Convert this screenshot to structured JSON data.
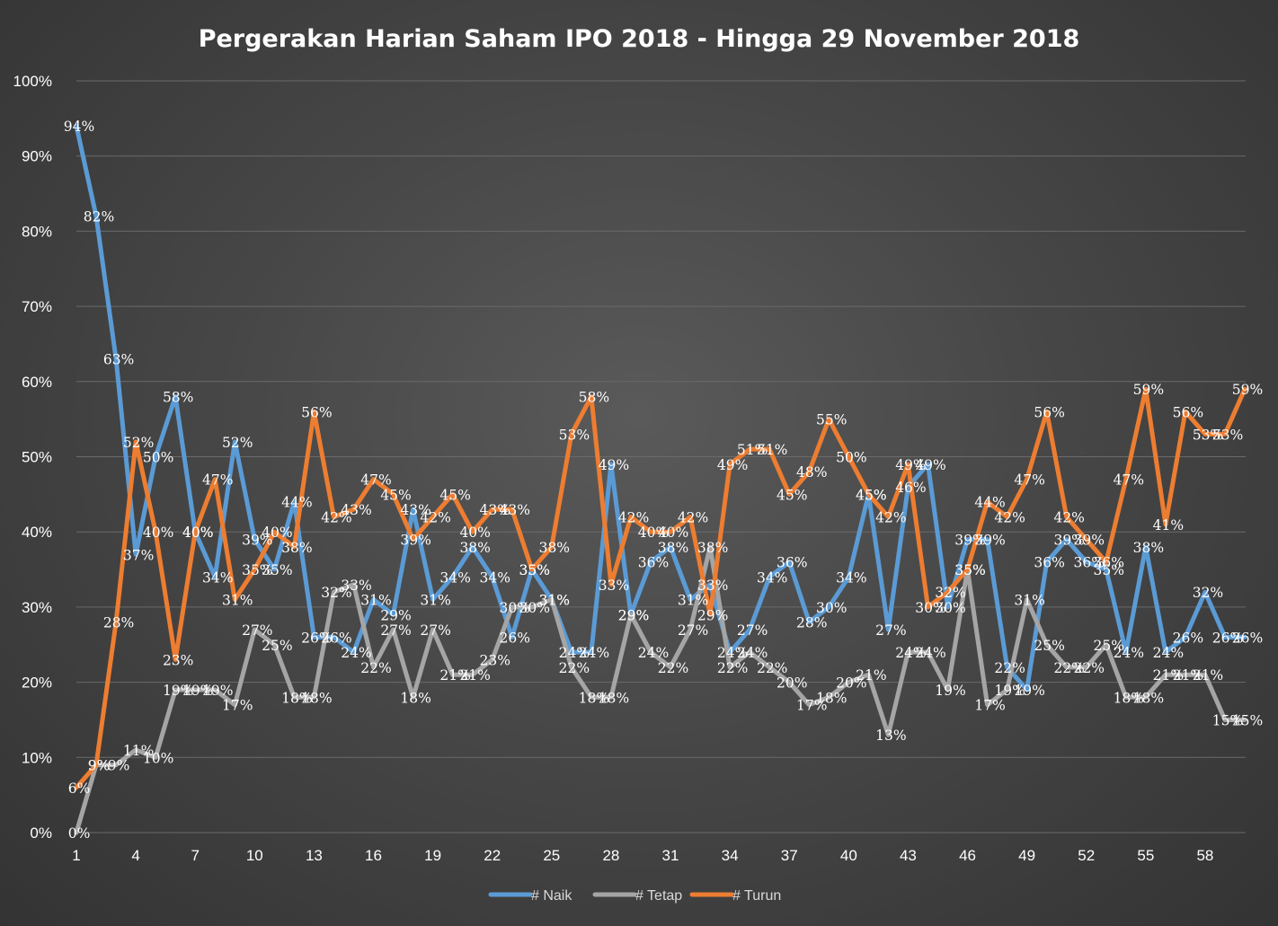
{
  "chart_data": {
    "type": "line",
    "title": "Pergerakan Harian Saham IPO 2018 - Hingga 29 November 2018",
    "xlabel": "",
    "ylabel": "",
    "ylim": [
      0,
      100
    ],
    "yticks": [
      "0%",
      "10%",
      "20%",
      "30%",
      "40%",
      "50%",
      "60%",
      "70%",
      "80%",
      "90%",
      "100%"
    ],
    "xticks": [
      "1",
      "4",
      "7",
      "10",
      "13",
      "16",
      "19",
      "22",
      "25",
      "28",
      "31",
      "34",
      "37",
      "40",
      "43",
      "46",
      "49",
      "52",
      "55",
      "58"
    ],
    "grid": true,
    "legend_position": "bottom",
    "x": [
      1,
      2,
      3,
      4,
      5,
      6,
      7,
      8,
      9,
      10,
      11,
      12,
      13,
      14,
      15,
      16,
      17,
      18,
      19,
      20,
      21,
      22,
      23,
      24,
      25,
      26,
      27,
      28,
      29,
      30,
      31,
      32,
      33,
      34,
      35,
      36,
      37,
      38,
      39,
      40,
      41,
      42,
      43,
      44,
      45,
      46,
      47,
      48,
      49,
      50,
      51,
      52,
      53,
      54,
      55,
      56,
      57,
      58,
      59,
      60
    ],
    "series": [
      {
        "name": "# Naik",
        "color": "#5b9bd5",
        "values": [
          94,
          82,
          63,
          37,
          50,
          58,
          40,
          34,
          52,
          39,
          35,
          44,
          26,
          26,
          24,
          31,
          29,
          43,
          31,
          34,
          38,
          34,
          26,
          35,
          31,
          24,
          24,
          49,
          29,
          36,
          38,
          31,
          33,
          24,
          27,
          34,
          36,
          28,
          30,
          34,
          45,
          27,
          46,
          49,
          30,
          39,
          39,
          22,
          19,
          36,
          39,
          36,
          35,
          24,
          38,
          24,
          26,
          32,
          26,
          26
        ]
      },
      {
        "name": "# Tetap",
        "color": "#a5a5a5",
        "values": [
          0,
          9,
          9,
          11,
          10,
          19,
          19,
          19,
          17,
          27,
          25,
          18,
          18,
          32,
          33,
          22,
          27,
          18,
          27,
          21,
          21,
          23,
          30,
          30,
          31,
          22,
          18,
          18,
          29,
          24,
          22,
          27,
          38,
          22,
          24,
          22,
          20,
          17,
          18,
          20,
          21,
          13,
          24,
          24,
          19,
          35,
          17,
          19,
          31,
          25,
          22,
          22,
          25,
          18,
          18,
          21,
          21,
          21,
          15,
          15
        ]
      },
      {
        "name": "# Turun",
        "color": "#ed7d31",
        "values": [
          6,
          9,
          28,
          52,
          40,
          23,
          40,
          47,
          31,
          35,
          40,
          38,
          56,
          42,
          43,
          47,
          45,
          39,
          42,
          45,
          40,
          43,
          43,
          35,
          38,
          53,
          58,
          33,
          42,
          40,
          40,
          42,
          29,
          49,
          51,
          51,
          45,
          48,
          55,
          50,
          45,
          42,
          49,
          30,
          32,
          35,
          44,
          42,
          47,
          56,
          42,
          39,
          36,
          47,
          59,
          41,
          56,
          53,
          53,
          59
        ]
      }
    ],
    "data_labels": true,
    "label_suffix": "%"
  }
}
